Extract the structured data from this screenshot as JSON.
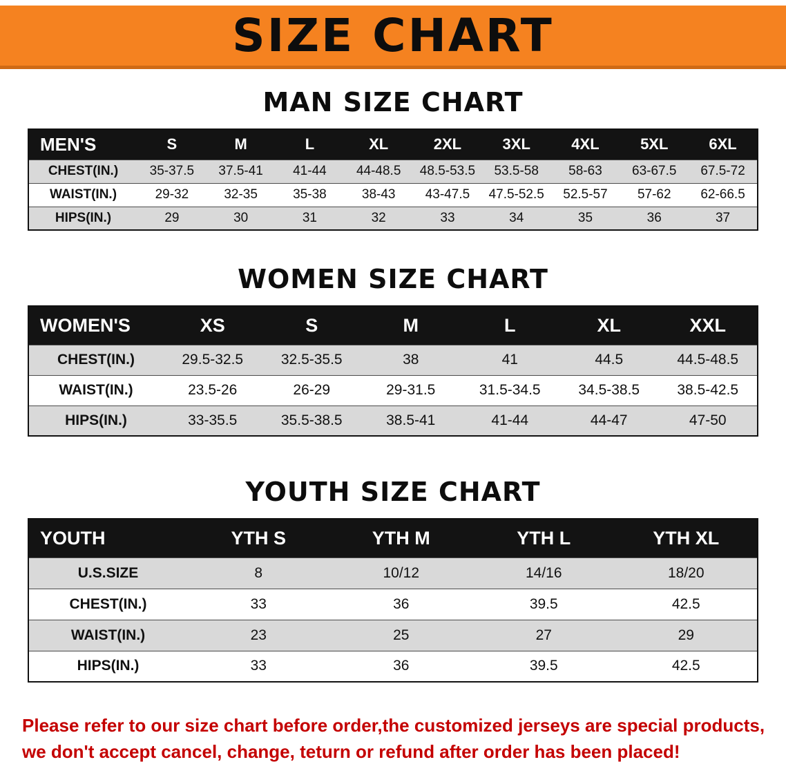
{
  "banner": {
    "title": "SIZE CHART"
  },
  "colors": {
    "banner_orange": "#f58220",
    "table_header_black": "#131313",
    "row_gray": "#d9d9d9",
    "disclaimer_red": "#c40000"
  },
  "men": {
    "heading": "MAN SIZE CHART",
    "header": [
      "MEN'S",
      "S",
      "M",
      "L",
      "XL",
      "2XL",
      "3XL",
      "4XL",
      "5XL",
      "6XL"
    ],
    "rows": [
      {
        "label": "CHEST(IN.)",
        "values": [
          "35-37.5",
          "37.5-41",
          "41-44",
          "44-48.5",
          "48.5-53.5",
          "53.5-58",
          "58-63",
          "63-67.5",
          "67.5-72"
        ]
      },
      {
        "label": "WAIST(IN.)",
        "values": [
          "29-32",
          "32-35",
          "35-38",
          "38-43",
          "43-47.5",
          "47.5-52.5",
          "52.5-57",
          "57-62",
          "62-66.5"
        ]
      },
      {
        "label": "HIPS(IN.)",
        "values": [
          "29",
          "30",
          "31",
          "32",
          "33",
          "34",
          "35",
          "36",
          "37"
        ]
      }
    ]
  },
  "women": {
    "heading": "WOMEN SIZE CHART",
    "header": [
      "WOMEN'S",
      "XS",
      "S",
      "M",
      "L",
      "XL",
      "XXL"
    ],
    "rows": [
      {
        "label": "CHEST(IN.)",
        "values": [
          "29.5-32.5",
          "32.5-35.5",
          "38",
          "41",
          "44.5",
          "44.5-48.5"
        ]
      },
      {
        "label": "WAIST(IN.)",
        "values": [
          "23.5-26",
          "26-29",
          "29-31.5",
          "31.5-34.5",
          "34.5-38.5",
          "38.5-42.5"
        ]
      },
      {
        "label": "HIPS(IN.)",
        "values": [
          "33-35.5",
          "35.5-38.5",
          "38.5-41",
          "41-44",
          "44-47",
          "47-50"
        ]
      }
    ]
  },
  "youth": {
    "heading": "YOUTH SIZE CHART",
    "header": [
      "YOUTH",
      "YTH S",
      "YTH M",
      "YTH L",
      "YTH XL"
    ],
    "rows": [
      {
        "label": "U.S.SIZE",
        "values": [
          "8",
          "10/12",
          "14/16",
          "18/20"
        ]
      },
      {
        "label": "CHEST(IN.)",
        "values": [
          "33",
          "36",
          "39.5",
          "42.5"
        ]
      },
      {
        "label": "WAIST(IN.)",
        "values": [
          "23",
          "25",
          "27",
          "29"
        ]
      },
      {
        "label": "HIPS(IN.)",
        "values": [
          "33",
          "36",
          "39.5",
          "42.5"
        ]
      }
    ]
  },
  "footer": {
    "line1": "Please refer to our size chart before order,the customized jerseys are special products,",
    "line2": "we don't accept cancel, change, teturn or refund after order has been placed!"
  }
}
